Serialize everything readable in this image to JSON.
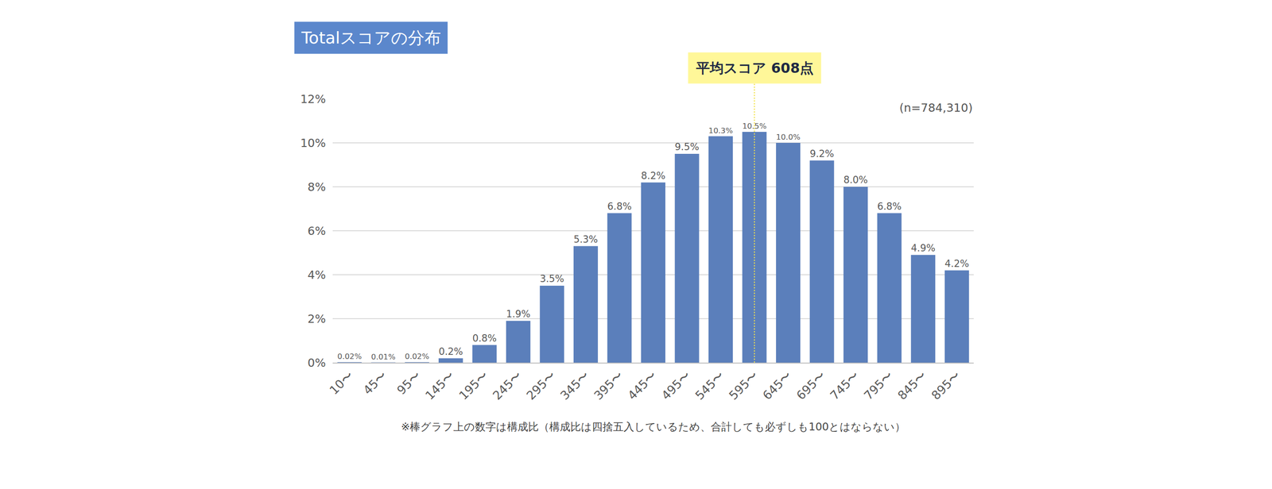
{
  "chart_data": {
    "type": "bar",
    "title": "Totalスコアの分布",
    "categories": [
      "10〜",
      "45〜",
      "95〜",
      "145〜",
      "195〜",
      "245〜",
      "295〜",
      "345〜",
      "395〜",
      "445〜",
      "495〜",
      "545〜",
      "595〜",
      "645〜",
      "695〜",
      "745〜",
      "795〜",
      "845〜",
      "895〜"
    ],
    "values": [
      0.02,
      0.01,
      0.02,
      0.2,
      0.8,
      1.9,
      3.5,
      5.3,
      6.8,
      8.2,
      9.5,
      10.3,
      10.5,
      10.0,
      9.2,
      8.0,
      6.8,
      4.9,
      4.2
    ],
    "value_labels": [
      "0.02%",
      "0.01%",
      "0.02%",
      "0.2%",
      "0.8%",
      "1.9%",
      "3.5%",
      "5.3%",
      "6.8%",
      "8.2%",
      "9.5%",
      "10.3%",
      "10.5%",
      "10.0%",
      "9.2%",
      "8.0%",
      "6.8%",
      "4.9%",
      "4.2%"
    ],
    "color": "#5b7fbb",
    "ylim": [
      0,
      12
    ],
    "yticks": [
      {
        "value": 0,
        "label": "0%"
      },
      {
        "value": 2,
        "label": "2%"
      },
      {
        "value": 4,
        "label": "4%"
      },
      {
        "value": 6,
        "label": "6%"
      },
      {
        "value": 8,
        "label": "8%"
      },
      {
        "value": 10,
        "label": "10%"
      },
      {
        "value": 12,
        "label": "12%"
      }
    ],
    "grid": true,
    "data_labels": true,
    "mean_line": {
      "text": "平均スコア 608点",
      "category": "595〜"
    },
    "sample_size": "(n=784,310)",
    "footnote": "※棒グラフ上の数字は構成比（構成比は四捨五入しているため、合計しても必ずしも100とはならない）"
  }
}
